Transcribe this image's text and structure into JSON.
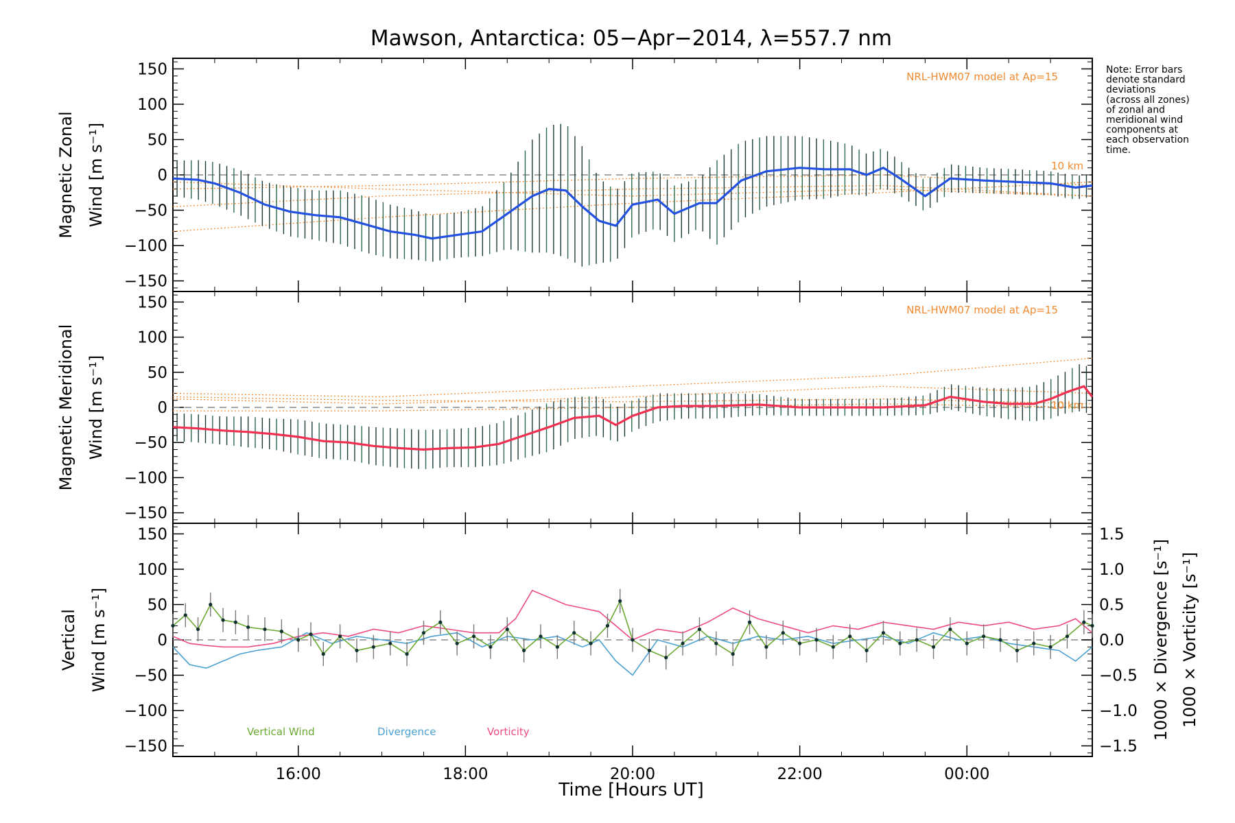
{
  "figure": {
    "title": "Mawson, Antarctica: 05−Apr−2014, λ=557.7 nm",
    "note_lines": [
      "Note: Error bars",
      "denote standard",
      "deviations",
      "(across all zones)",
      "of zonal and",
      "meridional wind",
      "components at",
      "each observation",
      "time."
    ],
    "xlabel": "Time [Hours UT]",
    "x_range_hours": [
      14.5,
      25.5
    ],
    "x_ticks": [
      16,
      18,
      20,
      22,
      24
    ],
    "x_tick_labels": [
      "16:00",
      "18:00",
      "20:00",
      "22:00",
      "00:00"
    ],
    "colors": {
      "zonal_line": "#2250e0",
      "meridional_line": "#f03050",
      "error_bar": "#1a3a3a",
      "model": "#f08a30",
      "vertical": "#6aa832",
      "divergence": "#4aa0d0",
      "vorticity": "#ec4a80",
      "zero_line": "#888888",
      "dots": "#103030"
    }
  },
  "chart_data": [
    {
      "type": "line",
      "panel": "zonal",
      "ylabel_lines": [
        "Magnetic Zonal",
        "Wind [m s⁻¹]"
      ],
      "ylim": [
        -165,
        165
      ],
      "y_ticks": [
        -150,
        -100,
        -50,
        0,
        50,
        100,
        150
      ],
      "y_tick_labels": [
        "−150",
        "−100",
        "−50",
        "0",
        "50",
        "100",
        "150"
      ],
      "model_label": "NRL-HWM07 model at Ap=15",
      "model_line_labels": [
        "10 km"
      ],
      "mean_wind": {
        "x": [
          14.5,
          14.8,
          15.0,
          15.3,
          15.6,
          15.9,
          16.2,
          16.5,
          16.8,
          17.1,
          17.4,
          17.6,
          17.9,
          18.2,
          18.5,
          18.8,
          19.0,
          19.2,
          19.4,
          19.6,
          19.8,
          20.0,
          20.3,
          20.5,
          20.8,
          21.0,
          21.3,
          21.6,
          22.0,
          22.3,
          22.6,
          22.8,
          23.0,
          23.2,
          23.5,
          23.8,
          24.2,
          24.6,
          25.0,
          25.3,
          25.5
        ],
        "y": [
          -5,
          -7,
          -12,
          -25,
          -42,
          -52,
          -57,
          -60,
          -70,
          -80,
          -85,
          -90,
          -85,
          -80,
          -55,
          -30,
          -20,
          -22,
          -45,
          -65,
          -72,
          -42,
          -35,
          -55,
          -40,
          -40,
          -8,
          5,
          10,
          8,
          8,
          0,
          10,
          -5,
          -30,
          -5,
          -8,
          -10,
          -12,
          -18,
          -15
        ]
      },
      "error_half_width": [
        25,
        28,
        30,
        32,
        32,
        35,
        35,
        38,
        40,
        38,
        35,
        33,
        32,
        35,
        50,
        80,
        90,
        95,
        85,
        60,
        50,
        45,
        40,
        40,
        35,
        60,
        55,
        50,
        45,
        42,
        35,
        30,
        28,
        25,
        22,
        20,
        18,
        18,
        17,
        17,
        16
      ]
    },
    {
      "type": "line",
      "panel": "meridional",
      "ylabel_lines": [
        "Magnetic Meridional",
        "Wind [m s⁻¹]"
      ],
      "ylim": [
        -165,
        165
      ],
      "y_ticks": [
        -150,
        -100,
        -50,
        0,
        50,
        100,
        150
      ],
      "y_tick_labels": [
        "−150",
        "−100",
        "−50",
        "0",
        "50",
        "100",
        "150"
      ],
      "model_label": "NRL-HWM07 model at Ap=15",
      "model_line_labels": [
        "10 km"
      ],
      "mean_wind": {
        "x": [
          14.5,
          14.8,
          15.1,
          15.4,
          15.7,
          16.0,
          16.3,
          16.6,
          16.9,
          17.2,
          17.5,
          17.8,
          18.1,
          18.4,
          18.7,
          19.0,
          19.3,
          19.6,
          19.8,
          20.0,
          20.3,
          20.6,
          21.0,
          21.5,
          22.0,
          22.5,
          23.0,
          23.5,
          23.8,
          24.2,
          24.5,
          24.8,
          25.0,
          25.2,
          25.4,
          25.5
        ],
        "y": [
          -28,
          -30,
          -33,
          -35,
          -38,
          -42,
          -48,
          -50,
          -55,
          -58,
          -60,
          -58,
          -57,
          -52,
          -40,
          -28,
          -15,
          -12,
          -25,
          -12,
          0,
          2,
          2,
          4,
          0,
          0,
          0,
          3,
          15,
          8,
          5,
          5,
          12,
          22,
          30,
          15
        ]
      },
      "error_half_width": [
        20,
        20,
        20,
        22,
        22,
        25,
        25,
        25,
        27,
        28,
        28,
        27,
        28,
        30,
        32,
        35,
        30,
        28,
        25,
        22,
        20,
        18,
        18,
        15,
        12,
        12,
        12,
        14,
        18,
        20,
        22,
        25,
        28,
        30,
        35,
        30
      ]
    },
    {
      "type": "line",
      "panel": "vertical",
      "ylabel_lines": [
        "Vertical",
        "Wind [m s⁻¹]"
      ],
      "ylim": [
        -165,
        165
      ],
      "y_ticks": [
        -150,
        -100,
        -50,
        0,
        50,
        100,
        150
      ],
      "y_tick_labels": [
        "−150",
        "−100",
        "−50",
        "0",
        "50",
        "100",
        "150"
      ],
      "right_axis": {
        "ylim": [
          -1.65,
          1.65
        ],
        "ticks": [
          -1.5,
          -1.0,
          -0.5,
          0.0,
          0.5,
          1.0,
          1.5
        ],
        "tick_labels": [
          "−1.5",
          "−1.0",
          "−0.5",
          "0.0",
          "0.5",
          "1.0",
          "1.5"
        ],
        "label_divergence": "1000 × Divergence [s⁻¹]",
        "label_vorticity": "1000 × Vorticity [s⁻¹]"
      },
      "legend": [
        "Vertical Wind",
        "Divergence",
        "Vorticity"
      ],
      "series": [
        {
          "name": "Vertical Wind",
          "x": [
            14.5,
            14.65,
            14.8,
            14.95,
            15.1,
            15.25,
            15.4,
            15.6,
            15.8,
            16.0,
            16.15,
            16.3,
            16.5,
            16.7,
            16.9,
            17.1,
            17.3,
            17.5,
            17.7,
            17.9,
            18.1,
            18.3,
            18.5,
            18.7,
            18.9,
            19.1,
            19.3,
            19.5,
            19.7,
            19.85,
            20.0,
            20.2,
            20.4,
            20.6,
            20.8,
            21.0,
            21.2,
            21.4,
            21.6,
            21.8,
            22.0,
            22.2,
            22.4,
            22.6,
            22.8,
            23.0,
            23.2,
            23.4,
            23.6,
            23.8,
            24.0,
            24.2,
            24.4,
            24.6,
            24.8,
            25.0,
            25.2,
            25.4,
            25.5
          ],
          "y": [
            20,
            35,
            15,
            50,
            28,
            25,
            18,
            15,
            12,
            0,
            8,
            -20,
            5,
            -15,
            -10,
            -5,
            -20,
            10,
            25,
            -5,
            5,
            -10,
            15,
            -15,
            5,
            -10,
            10,
            -5,
            20,
            55,
            0,
            -15,
            -25,
            -5,
            15,
            -5,
            -20,
            25,
            -10,
            10,
            -5,
            0,
            -10,
            5,
            -15,
            10,
            -5,
            0,
            -10,
            15,
            -5,
            5,
            0,
            -15,
            -5,
            -10,
            5,
            25,
            20
          ]
        },
        {
          "name": "Divergence",
          "x": [
            14.5,
            14.7,
            14.9,
            15.1,
            15.3,
            15.5,
            15.8,
            16.1,
            16.4,
            16.7,
            17.0,
            17.3,
            17.6,
            17.9,
            18.2,
            18.5,
            18.8,
            19.1,
            19.4,
            19.6,
            19.8,
            20.0,
            20.3,
            20.6,
            20.9,
            21.2,
            21.5,
            21.8,
            22.1,
            22.4,
            22.7,
            23.0,
            23.3,
            23.6,
            23.9,
            24.2,
            24.5,
            24.8,
            25.1,
            25.3,
            25.5
          ],
          "x_note": "",
          "y": [
            -0.1,
            -0.35,
            -0.4,
            -0.3,
            -0.2,
            -0.15,
            -0.1,
            0.1,
            -0.05,
            0.05,
            0.0,
            -0.05,
            0.05,
            0.1,
            -0.1,
            0.05,
            0.0,
            0.05,
            -0.1,
            0.0,
            -0.3,
            -0.5,
            0.0,
            -0.1,
            0.05,
            -0.05,
            0.05,
            0.0,
            0.05,
            -0.05,
            0.0,
            0.05,
            -0.05,
            0.1,
            0.0,
            0.05,
            -0.05,
            -0.1,
            -0.15,
            -0.3,
            -0.1
          ]
        },
        {
          "name": "Vorticity",
          "x": [
            14.5,
            14.7,
            14.9,
            15.1,
            15.4,
            15.7,
            16.0,
            16.3,
            16.6,
            16.9,
            17.2,
            17.5,
            17.8,
            18.1,
            18.4,
            18.6,
            18.8,
            19.0,
            19.2,
            19.4,
            19.6,
            19.8,
            20.0,
            20.3,
            20.6,
            20.9,
            21.2,
            21.5,
            21.8,
            22.1,
            22.4,
            22.7,
            23.0,
            23.3,
            23.6,
            23.9,
            24.2,
            24.5,
            24.8,
            25.1,
            25.3,
            25.5
          ],
          "y": [
            0.05,
            -0.05,
            -0.08,
            -0.1,
            -0.1,
            -0.05,
            0.05,
            0.1,
            0.05,
            0.15,
            0.1,
            0.2,
            0.15,
            0.1,
            0.1,
            0.3,
            0.7,
            0.6,
            0.5,
            0.45,
            0.4,
            0.2,
            0.0,
            0.15,
            0.1,
            0.25,
            0.45,
            0.3,
            0.2,
            0.1,
            0.2,
            0.15,
            0.25,
            0.2,
            0.15,
            0.25,
            0.2,
            0.25,
            0.15,
            0.2,
            0.3,
            0.1
          ]
        }
      ]
    }
  ]
}
